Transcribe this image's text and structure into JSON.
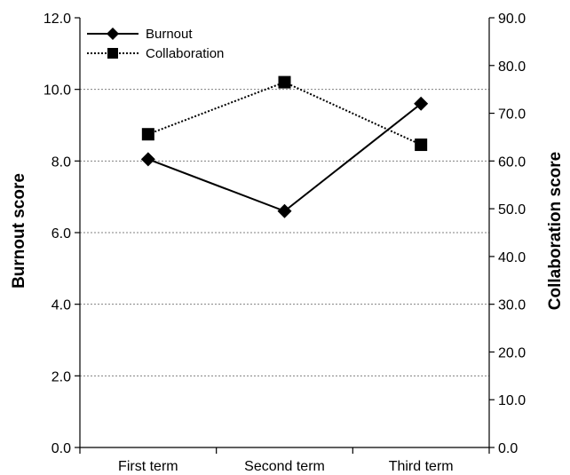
{
  "chart_data": {
    "type": "line",
    "categories": [
      "First term",
      "Second term",
      "Third term"
    ],
    "series": [
      {
        "name": "Burnout",
        "axis": "left",
        "marker": "diamond",
        "line_style": "solid",
        "values": [
          8.05,
          6.6,
          9.6
        ]
      },
      {
        "name": "Collaboration",
        "axis": "right",
        "marker": "square",
        "line_style": "dotted",
        "values": [
          65.6,
          76.5,
          63.4
        ]
      }
    ],
    "ylabel": "Burnout score",
    "y2label": "Collaboration score",
    "ylim": [
      0,
      12
    ],
    "y2lim": [
      0,
      90
    ],
    "yticks": [
      "0.0",
      "2.0",
      "4.0",
      "6.0",
      "8.0",
      "10.0",
      "12.0"
    ],
    "y2ticks": [
      "0.0",
      "10.0",
      "20.0",
      "30.0",
      "40.0",
      "50.0",
      "60.0",
      "70.0",
      "80.0",
      "90.0"
    ],
    "grid": "horizontal dotted",
    "legend_position": "top-left"
  }
}
